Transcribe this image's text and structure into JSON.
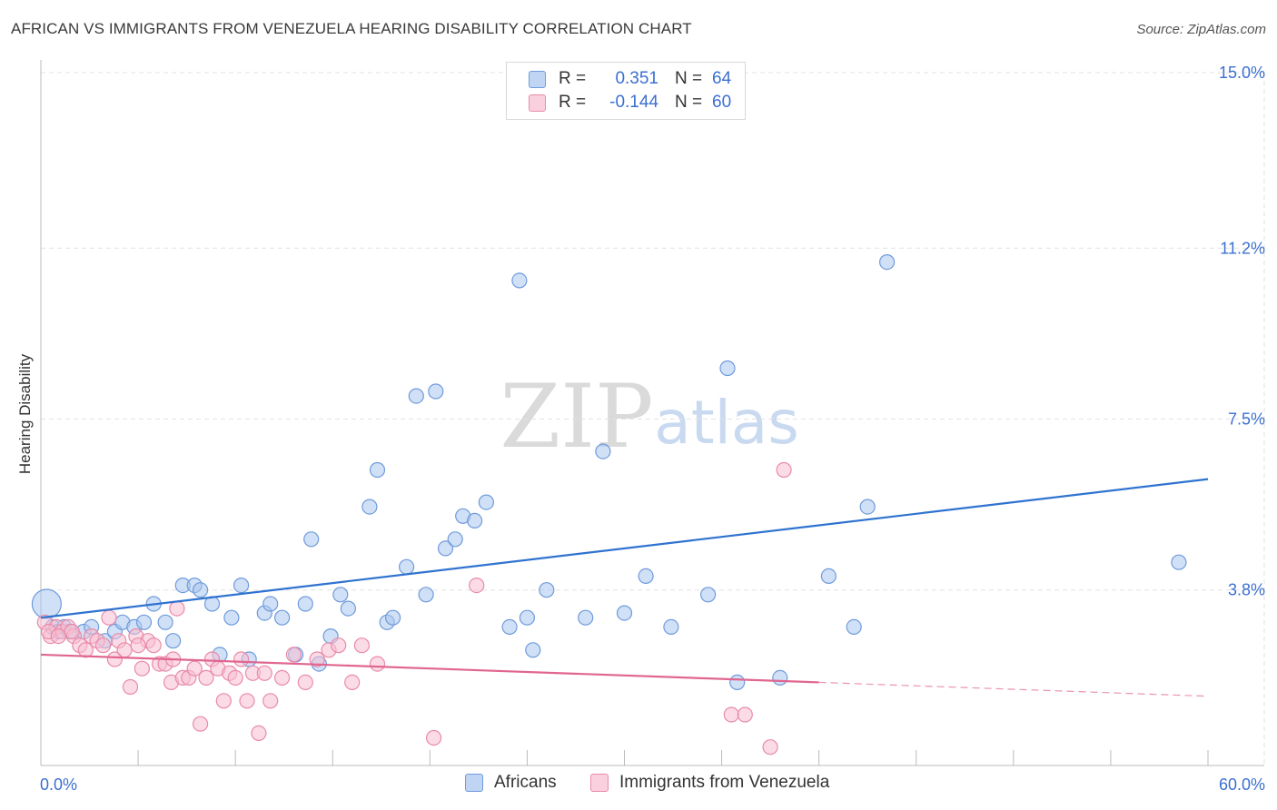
{
  "title": "AFRICAN VS IMMIGRANTS FROM VENEZUELA HEARING DISABILITY CORRELATION CHART",
  "source": "Source: ZipAtlas.com",
  "watermark": {
    "zip": "ZIP",
    "atlas": "atlas"
  },
  "legend": {
    "r_label": "R =",
    "n_label": "N =",
    "rows": [
      {
        "r": "0.351",
        "n": "64",
        "color": "#a9c6ee",
        "border": "#6f9bdc"
      },
      {
        "r": "-0.144",
        "n": "60",
        "color": "#f7bfd1",
        "border": "#e98aa9"
      }
    ]
  },
  "chart_data": {
    "type": "scatter",
    "title": "AFRICAN VS IMMIGRANTS FROM VENEZUELA HEARING DISABILITY CORRELATION CHART",
    "xlabel": "",
    "ylabel": "Hearing Disability",
    "xlim": [
      0,
      60
    ],
    "ylim": [
      0,
      15
    ],
    "x_tick_labels": [
      "0.0%",
      "60.0%"
    ],
    "y_ticks": [
      3.8,
      7.5,
      11.2,
      15.0
    ],
    "y_tick_labels": [
      "3.8%",
      "7.5%",
      "11.2%",
      "15.0%"
    ],
    "grid": true,
    "legend_position": "top-center",
    "series": [
      {
        "name": "Africans",
        "color": "#6f9bdc",
        "fill": "#a9c6ee",
        "trend": {
          "x0": 0.0,
          "y0": 3.2,
          "x1": 60.0,
          "y1": 6.2,
          "solid_until": 60.0
        },
        "points": [
          [
            0.3,
            3.5
          ],
          [
            0.6,
            3.0
          ],
          [
            0.9,
            2.9
          ],
          [
            1.2,
            3.0
          ],
          [
            1.5,
            2.9
          ],
          [
            2.2,
            2.9
          ],
          [
            2.6,
            3.0
          ],
          [
            3.3,
            2.7
          ],
          [
            3.8,
            2.9
          ],
          [
            4.2,
            3.1
          ],
          [
            4.8,
            3.0
          ],
          [
            5.3,
            3.1
          ],
          [
            5.8,
            3.5
          ],
          [
            6.4,
            3.1
          ],
          [
            6.8,
            2.7
          ],
          [
            7.3,
            3.9
          ],
          [
            7.9,
            3.9
          ],
          [
            8.2,
            3.8
          ],
          [
            8.8,
            3.5
          ],
          [
            9.2,
            2.4
          ],
          [
            9.8,
            3.2
          ],
          [
            10.3,
            3.9
          ],
          [
            10.7,
            2.3
          ],
          [
            11.5,
            3.3
          ],
          [
            11.8,
            3.5
          ],
          [
            12.4,
            3.2
          ],
          [
            13.1,
            2.4
          ],
          [
            13.6,
            3.5
          ],
          [
            13.9,
            4.9
          ],
          [
            14.3,
            2.2
          ],
          [
            14.9,
            2.8
          ],
          [
            15.4,
            3.7
          ],
          [
            15.8,
            3.4
          ],
          [
            16.9,
            5.6
          ],
          [
            17.3,
            6.4
          ],
          [
            17.8,
            3.1
          ],
          [
            18.1,
            3.2
          ],
          [
            18.8,
            4.3
          ],
          [
            19.3,
            8.0
          ],
          [
            19.8,
            3.7
          ],
          [
            20.3,
            8.1
          ],
          [
            20.8,
            4.7
          ],
          [
            21.3,
            4.9
          ],
          [
            21.7,
            5.4
          ],
          [
            22.3,
            5.3
          ],
          [
            22.9,
            5.7
          ],
          [
            24.1,
            3.0
          ],
          [
            24.6,
            10.5
          ],
          [
            25.0,
            3.2
          ],
          [
            25.3,
            2.5
          ],
          [
            26.0,
            3.8
          ],
          [
            28.0,
            3.2
          ],
          [
            28.9,
            6.8
          ],
          [
            30.0,
            3.3
          ],
          [
            31.1,
            4.1
          ],
          [
            32.4,
            3.0
          ],
          [
            34.3,
            3.7
          ],
          [
            35.3,
            8.6
          ],
          [
            35.8,
            1.8
          ],
          [
            38.0,
            1.9
          ],
          [
            40.5,
            4.1
          ],
          [
            41.8,
            3.0
          ],
          [
            42.5,
            5.6
          ],
          [
            43.5,
            10.9
          ],
          [
            58.5,
            4.4
          ]
        ]
      },
      {
        "name": "Immigrants from Venezuela",
        "color": "#e98aa9",
        "fill": "#f7bfd1",
        "trend": {
          "x0": 0.0,
          "y0": 2.4,
          "x1": 60.0,
          "y1": 1.5,
          "solid_until": 40.0
        },
        "points": [
          [
            0.2,
            3.1
          ],
          [
            0.5,
            2.8
          ],
          [
            0.8,
            3.0
          ],
          [
            1.1,
            2.9
          ],
          [
            1.4,
            3.0
          ],
          [
            1.7,
            2.8
          ],
          [
            2.0,
            2.6
          ],
          [
            2.3,
            2.5
          ],
          [
            2.6,
            2.8
          ],
          [
            2.9,
            2.7
          ],
          [
            3.2,
            2.6
          ],
          [
            3.5,
            3.2
          ],
          [
            3.8,
            2.3
          ],
          [
            4.0,
            2.7
          ],
          [
            4.3,
            2.5
          ],
          [
            4.6,
            1.7
          ],
          [
            4.9,
            2.8
          ],
          [
            5.2,
            2.1
          ],
          [
            5.5,
            2.7
          ],
          [
            5.8,
            2.6
          ],
          [
            6.1,
            2.2
          ],
          [
            6.4,
            2.2
          ],
          [
            6.7,
            1.8
          ],
          [
            7.0,
            3.4
          ],
          [
            7.3,
            1.9
          ],
          [
            7.6,
            1.9
          ],
          [
            7.9,
            2.1
          ],
          [
            8.2,
            0.9
          ],
          [
            8.5,
            1.9
          ],
          [
            8.8,
            2.3
          ],
          [
            9.1,
            2.1
          ],
          [
            9.4,
            1.4
          ],
          [
            9.7,
            2.0
          ],
          [
            10.0,
            1.9
          ],
          [
            10.3,
            2.3
          ],
          [
            10.6,
            1.4
          ],
          [
            10.9,
            2.0
          ],
          [
            11.2,
            0.7
          ],
          [
            11.5,
            2.0
          ],
          [
            11.8,
            1.4
          ],
          [
            12.4,
            1.9
          ],
          [
            13.0,
            2.4
          ],
          [
            13.6,
            1.8
          ],
          [
            14.2,
            2.3
          ],
          [
            14.8,
            2.5
          ],
          [
            15.3,
            2.6
          ],
          [
            16.0,
            1.8
          ],
          [
            16.5,
            2.6
          ],
          [
            17.3,
            2.2
          ],
          [
            20.2,
            0.6
          ],
          [
            22.4,
            3.9
          ],
          [
            35.5,
            1.1
          ],
          [
            36.2,
            1.1
          ],
          [
            37.5,
            0.4
          ],
          [
            38.2,
            6.4
          ],
          [
            0.4,
            2.9
          ],
          [
            0.9,
            2.8
          ],
          [
            1.6,
            2.9
          ],
          [
            5.0,
            2.6
          ],
          [
            6.8,
            2.3
          ]
        ]
      }
    ]
  }
}
